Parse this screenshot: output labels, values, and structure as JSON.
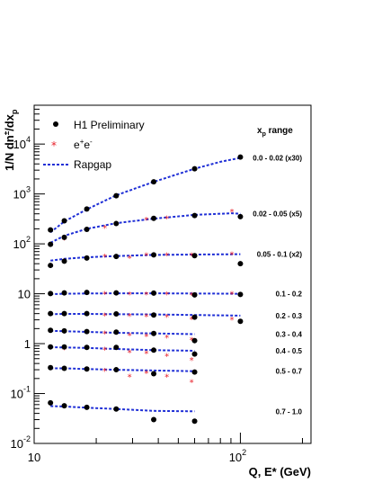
{
  "chart_data": {
    "type": "scatter",
    "xscale": "log",
    "yscale": "log",
    "xlim": [
      10,
      220
    ],
    "ylim": [
      0.01,
      60000
    ],
    "xlabel": "Q, E* (GeV)",
    "ylabel": "1/N dn",
    "ylabel_sup": "±",
    "ylabel_tail": "/dx",
    "ylabel_sub": "p",
    "x_ticks": [
      {
        "value": 10,
        "label": "10"
      },
      {
        "value": 100,
        "label": "10",
        "sup": "2"
      }
    ],
    "y_ticks": [
      {
        "value": 0.01,
        "label": "10",
        "sup": "-2"
      },
      {
        "value": 0.1,
        "label": "10",
        "sup": "-1"
      },
      {
        "value": 1,
        "label": "1"
      },
      {
        "value": 10,
        "label": "10"
      },
      {
        "value": 100,
        "label": "10",
        "sup": "2"
      },
      {
        "value": 1000,
        "label": "10",
        "sup": "3"
      },
      {
        "value": 10000,
        "label": "10",
        "sup": "4"
      }
    ],
    "legend": {
      "items": [
        {
          "label": "H1 Preliminary",
          "marker": "dot"
        },
        {
          "label": "e",
          "sup_a": "+",
          "mid": "e",
          "sup_b": "-",
          "marker": "star"
        },
        {
          "label": "Rapgap",
          "marker": "dashed-line"
        }
      ],
      "title_main": "x",
      "title_sub": "p",
      "title_tail": " range"
    },
    "colors": {
      "h1": "#000000",
      "ee": "#e8202a",
      "rapgap": "#1f2fd6"
    },
    "series": [
      {
        "range": "0.0 - 0.02 (x30)",
        "h1": [
          [
            12,
            190
          ],
          [
            14,
            290
          ],
          [
            18,
            500
          ],
          [
            25,
            920
          ],
          [
            38,
            1750
          ],
          [
            60,
            3200
          ],
          [
            100,
            5500
          ]
        ],
        "ee": [],
        "rapgap": [
          [
            12,
            170
          ],
          [
            14,
            280
          ],
          [
            18,
            490
          ],
          [
            25,
            940
          ],
          [
            38,
            1750
          ],
          [
            60,
            3200
          ],
          [
            80,
            4400
          ],
          [
            100,
            5300
          ]
        ]
      },
      {
        "range": "0.02 - 0.05 (x5)",
        "h1": [
          [
            12,
            98
          ],
          [
            14,
            135
          ],
          [
            18,
            195
          ],
          [
            25,
            255
          ],
          [
            38,
            325
          ],
          [
            60,
            370
          ],
          [
            100,
            350
          ]
        ],
        "ee": [
          [
            14,
            130
          ],
          [
            22,
            220
          ],
          [
            35,
            320
          ],
          [
            44,
            340
          ],
          [
            91,
            470
          ]
        ],
        "rapgap": [
          [
            12,
            105
          ],
          [
            14,
            145
          ],
          [
            18,
            200
          ],
          [
            25,
            260
          ],
          [
            38,
            320
          ],
          [
            60,
            380
          ],
          [
            91,
            410
          ],
          [
            100,
            400
          ]
        ]
      },
      {
        "range": "0.05 - 0.1 (x2)",
        "h1": [
          [
            12,
            37
          ],
          [
            14,
            45
          ],
          [
            18,
            52
          ],
          [
            25,
            56
          ],
          [
            38,
            60
          ],
          [
            60,
            58
          ],
          [
            100,
            40
          ]
        ],
        "ee": [
          [
            14,
            48
          ],
          [
            22,
            58
          ],
          [
            29,
            55
          ],
          [
            35,
            62
          ],
          [
            44,
            62
          ],
          [
            58,
            62
          ],
          [
            91,
            65
          ]
        ],
        "rapgap": [
          [
            12,
            46
          ],
          [
            14,
            50
          ],
          [
            18,
            54
          ],
          [
            25,
            57
          ],
          [
            38,
            60
          ],
          [
            60,
            61
          ],
          [
            100,
            62
          ]
        ]
      },
      {
        "range": "0.1 - 0.2",
        "h1": [
          [
            12,
            10.1
          ],
          [
            14,
            10.4
          ],
          [
            18,
            10.6
          ],
          [
            25,
            10.4
          ],
          [
            38,
            10.3
          ],
          [
            60,
            9.5
          ],
          [
            100,
            9.7
          ]
        ],
        "ee": [
          [
            14,
            10.5
          ],
          [
            22,
            10.5
          ],
          [
            29,
            10.3
          ],
          [
            35,
            10.3
          ],
          [
            44,
            10.2
          ],
          [
            58,
            10.0
          ],
          [
            91,
            10.4
          ]
        ],
        "rapgap": [
          [
            12,
            9.8
          ],
          [
            14,
            10.0
          ],
          [
            18,
            10.1
          ],
          [
            25,
            10.2
          ],
          [
            38,
            10.2
          ],
          [
            60,
            10.1
          ],
          [
            100,
            10.0
          ]
        ]
      },
      {
        "range": "0.2 - 0.3",
        "h1": [
          [
            12,
            4.0
          ],
          [
            14,
            4.0
          ],
          [
            18,
            4.0
          ],
          [
            25,
            3.95
          ],
          [
            38,
            3.75
          ],
          [
            60,
            3.4
          ],
          [
            100,
            2.8
          ]
        ],
        "ee": [
          [
            14,
            4.0
          ],
          [
            22,
            3.9
          ],
          [
            29,
            3.8
          ],
          [
            35,
            3.7
          ],
          [
            44,
            3.6
          ],
          [
            58,
            3.3
          ],
          [
            91,
            3.2
          ]
        ],
        "rapgap": [
          [
            12,
            3.9
          ],
          [
            14,
            3.95
          ],
          [
            18,
            3.95
          ],
          [
            25,
            3.9
          ],
          [
            38,
            3.85
          ],
          [
            60,
            3.75
          ],
          [
            100,
            3.65
          ]
        ]
      },
      {
        "range": "0.3 - 0.4",
        "h1": [
          [
            12,
            1.85
          ],
          [
            14,
            1.8
          ],
          [
            18,
            1.75
          ],
          [
            25,
            1.7
          ],
          [
            38,
            1.6
          ],
          [
            60,
            1.15
          ]
        ],
        "ee": [
          [
            14,
            1.75
          ],
          [
            22,
            1.7
          ],
          [
            29,
            1.55
          ],
          [
            35,
            1.5
          ],
          [
            44,
            1.4
          ],
          [
            58,
            1.25
          ]
        ],
        "rapgap": [
          [
            12,
            1.8
          ],
          [
            14,
            1.78
          ],
          [
            18,
            1.72
          ],
          [
            25,
            1.65
          ],
          [
            38,
            1.6
          ],
          [
            60,
            1.55
          ]
        ]
      },
      {
        "range": "0.4 - 0.5",
        "h1": [
          [
            12,
            0.86
          ],
          [
            14,
            0.86
          ],
          [
            18,
            0.84
          ],
          [
            25,
            0.84
          ],
          [
            38,
            0.74
          ],
          [
            60,
            0.62
          ]
        ],
        "ee": [
          [
            14,
            0.82
          ],
          [
            22,
            0.8
          ],
          [
            29,
            0.7
          ],
          [
            35,
            0.68
          ],
          [
            44,
            0.6
          ],
          [
            58,
            0.5
          ]
        ],
        "rapgap": [
          [
            12,
            0.85
          ],
          [
            14,
            0.84
          ],
          [
            18,
            0.82
          ],
          [
            25,
            0.78
          ],
          [
            38,
            0.74
          ],
          [
            60,
            0.72
          ]
        ]
      },
      {
        "range": "0.5 - 0.7",
        "h1": [
          [
            12,
            0.33
          ],
          [
            14,
            0.32
          ],
          [
            18,
            0.31
          ],
          [
            25,
            0.3
          ],
          [
            38,
            0.25
          ],
          [
            60,
            0.27
          ]
        ],
        "ee": [
          [
            14,
            0.32
          ],
          [
            22,
            0.3
          ],
          [
            29,
            0.23
          ],
          [
            35,
            0.27
          ],
          [
            44,
            0.23
          ],
          [
            58,
            0.18
          ]
        ],
        "rapgap": [
          [
            12,
            0.32
          ],
          [
            14,
            0.32
          ],
          [
            18,
            0.31
          ],
          [
            25,
            0.3
          ],
          [
            38,
            0.29
          ],
          [
            60,
            0.28
          ]
        ]
      },
      {
        "range": "0.7 - 1.0",
        "h1": [
          [
            12,
            0.065
          ],
          [
            14,
            0.057
          ],
          [
            18,
            0.053
          ],
          [
            25,
            0.049
          ],
          [
            38,
            0.03
          ],
          [
            60,
            0.028
          ]
        ],
        "ee": [],
        "rapgap": [
          [
            12,
            0.056
          ],
          [
            14,
            0.055
          ],
          [
            18,
            0.052
          ],
          [
            25,
            0.049
          ],
          [
            38,
            0.045
          ],
          [
            60,
            0.044
          ]
        ]
      }
    ]
  }
}
